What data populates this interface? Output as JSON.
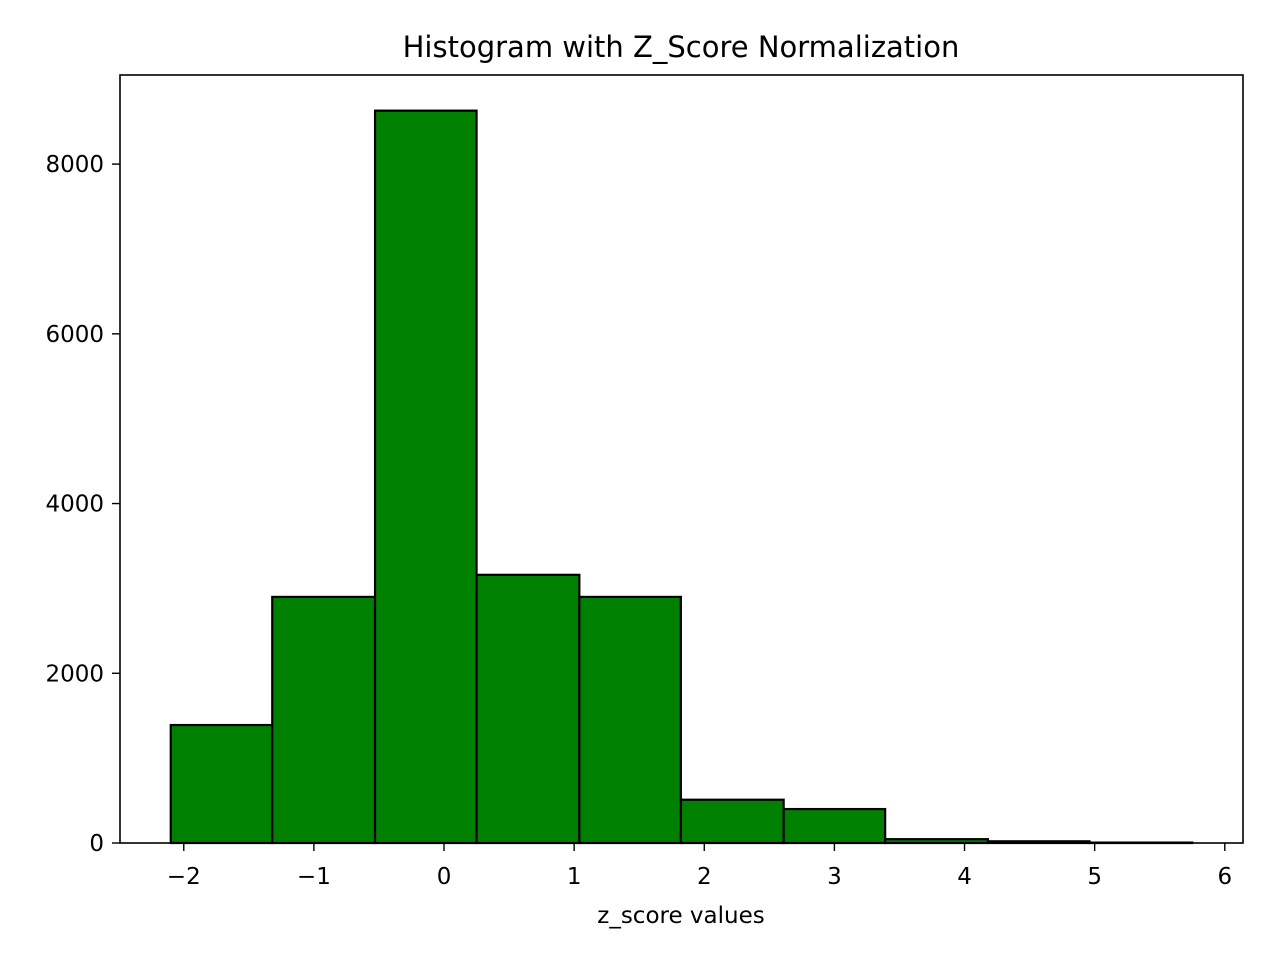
{
  "chart_data": {
    "type": "bar",
    "title": "Histogram with Z_Score Normalization",
    "xlabel": "z_score values",
    "ylabel": "",
    "bins": [
      {
        "x0": -2.1,
        "x1": -1.32,
        "count": 1390
      },
      {
        "x0": -1.32,
        "x1": -0.53,
        "count": 2900
      },
      {
        "x0": -0.53,
        "x1": 0.25,
        "count": 8630
      },
      {
        "x0": 0.25,
        "x1": 1.04,
        "count": 3160
      },
      {
        "x0": 1.04,
        "x1": 1.82,
        "count": 2900
      },
      {
        "x0": 1.82,
        "x1": 2.61,
        "count": 510
      },
      {
        "x0": 2.61,
        "x1": 3.39,
        "count": 400
      },
      {
        "x0": 3.39,
        "x1": 4.18,
        "count": 45
      },
      {
        "x0": 4.18,
        "x1": 4.96,
        "count": 20
      },
      {
        "x0": 4.96,
        "x1": 5.75,
        "count": 5
      }
    ],
    "xlim": [
      -2.49,
      6.14
    ],
    "ylim": [
      0,
      9050
    ],
    "xticks": [
      {
        "value": -2,
        "label": "−2"
      },
      {
        "value": -1,
        "label": "−1"
      },
      {
        "value": 0,
        "label": "0"
      },
      {
        "value": 1,
        "label": "1"
      },
      {
        "value": 2,
        "label": "2"
      },
      {
        "value": 3,
        "label": "3"
      },
      {
        "value": 4,
        "label": "4"
      },
      {
        "value": 5,
        "label": "5"
      },
      {
        "value": 6,
        "label": "6"
      }
    ],
    "yticks": [
      {
        "value": 0,
        "label": "0"
      },
      {
        "value": 2000,
        "label": "2000"
      },
      {
        "value": 4000,
        "label": "4000"
      },
      {
        "value": 6000,
        "label": "6000"
      },
      {
        "value": 8000,
        "label": "8000"
      }
    ],
    "grid": false,
    "legend": "none",
    "colors": {
      "bar_fill": "#008000",
      "bar_edge": "#000000"
    }
  }
}
